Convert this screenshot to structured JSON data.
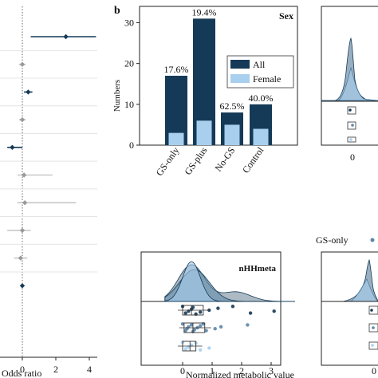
{
  "panel_a": {
    "xlabel": "Odds ratio",
    "ticks": [
      "0",
      "2",
      "4"
    ],
    "colors": {
      "dark": "#153a57",
      "grey": "#9a9a9a",
      "light": "#c8c8c8"
    }
  },
  "panel_b": {
    "letter": "b",
    "title": "Sex",
    "ylabel": "Numbers",
    "yticks": [
      "0",
      "10",
      "20",
      "30"
    ],
    "legend": [
      "All",
      "Female"
    ],
    "colors": {
      "all": "#153a57",
      "female": "#a9cfee"
    }
  },
  "panel_c": {
    "title": "nHHmeta",
    "xlabel": "Normalized metabolic value",
    "ticks": [
      "0",
      "1",
      "2",
      "3"
    ]
  },
  "panel_right": {
    "tick": "0",
    "legend_label": "GS-only"
  },
  "chart_data": [
    {
      "type": "scatter",
      "xlabel": "Odds ratio",
      "xlim": [
        -0.9,
        4.4
      ],
      "rows": [
        {
          "estimate": 2.6,
          "ci": [
            0.5,
            4.4
          ],
          "significant": true
        },
        {
          "estimate": 0.0,
          "ci": [
            -0.2,
            0.2
          ],
          "significant": false
        },
        {
          "estimate": 0.35,
          "ci": [
            0.1,
            0.6
          ],
          "significant": true
        },
        {
          "estimate": 0.0,
          "ci": [
            -0.2,
            0.2
          ],
          "significant": false
        },
        {
          "estimate": -0.6,
          "ci": [
            -0.9,
            0.0
          ],
          "significant": true
        },
        {
          "estimate": 0.1,
          "ci": [
            -0.3,
            1.8
          ],
          "significant": false
        },
        {
          "estimate": 0.15,
          "ci": [
            -0.3,
            3.2
          ],
          "significant": false
        },
        {
          "estimate": 0.0,
          "ci": [
            -0.9,
            0.5
          ],
          "significant": false
        },
        {
          "estimate": -0.1,
          "ci": [
            -0.5,
            0.3
          ],
          "significant": false
        },
        {
          "estimate": 0.0,
          "ci": [
            -0.1,
            0.1
          ],
          "significant": true
        }
      ]
    },
    {
      "type": "bar",
      "title": "Sex",
      "ylabel": "Numbers",
      "ylim": [
        0,
        34
      ],
      "categories": [
        "GS-only",
        "GS-plus",
        "No-GS",
        "Control"
      ],
      "series": [
        {
          "name": "All",
          "values": [
            17,
            31,
            8,
            10
          ]
        },
        {
          "name": "Female",
          "values": [
            3,
            6,
            5,
            4
          ]
        }
      ],
      "bar_labels": [
        "17.6%",
        "19.4%",
        "62.5%",
        "40.0%"
      ],
      "legend": "top-right"
    },
    {
      "type": "area",
      "title": "nHHmeta",
      "xlabel": "Normalized metabolic value",
      "xlim": [
        -0.6,
        3.8
      ],
      "groups": [
        {
          "peak": 0.3,
          "spread": 0.45,
          "points": [
            0.0,
            0.1,
            0.2,
            0.3,
            0.35,
            0.45,
            0.6,
            0.9,
            1.2,
            1.7,
            2.3,
            3.1
          ],
          "box": [
            0.0,
            0.3,
            0.7
          ]
        },
        {
          "peak": 0.4,
          "spread": 0.5,
          "points": [
            0.0,
            0.1,
            0.15,
            0.2,
            0.3,
            0.35,
            0.4,
            0.5,
            0.6,
            0.7,
            0.8,
            1.1,
            1.3,
            2.2
          ],
          "box": [
            0.05,
            0.35,
            0.75
          ]
        },
        {
          "peak": 0.3,
          "spread": 0.3,
          "points": [
            0.0,
            0.1,
            0.2,
            0.3,
            0.45,
            0.6,
            0.9
          ],
          "box": [
            0.0,
            0.25,
            0.45
          ]
        }
      ]
    }
  ]
}
